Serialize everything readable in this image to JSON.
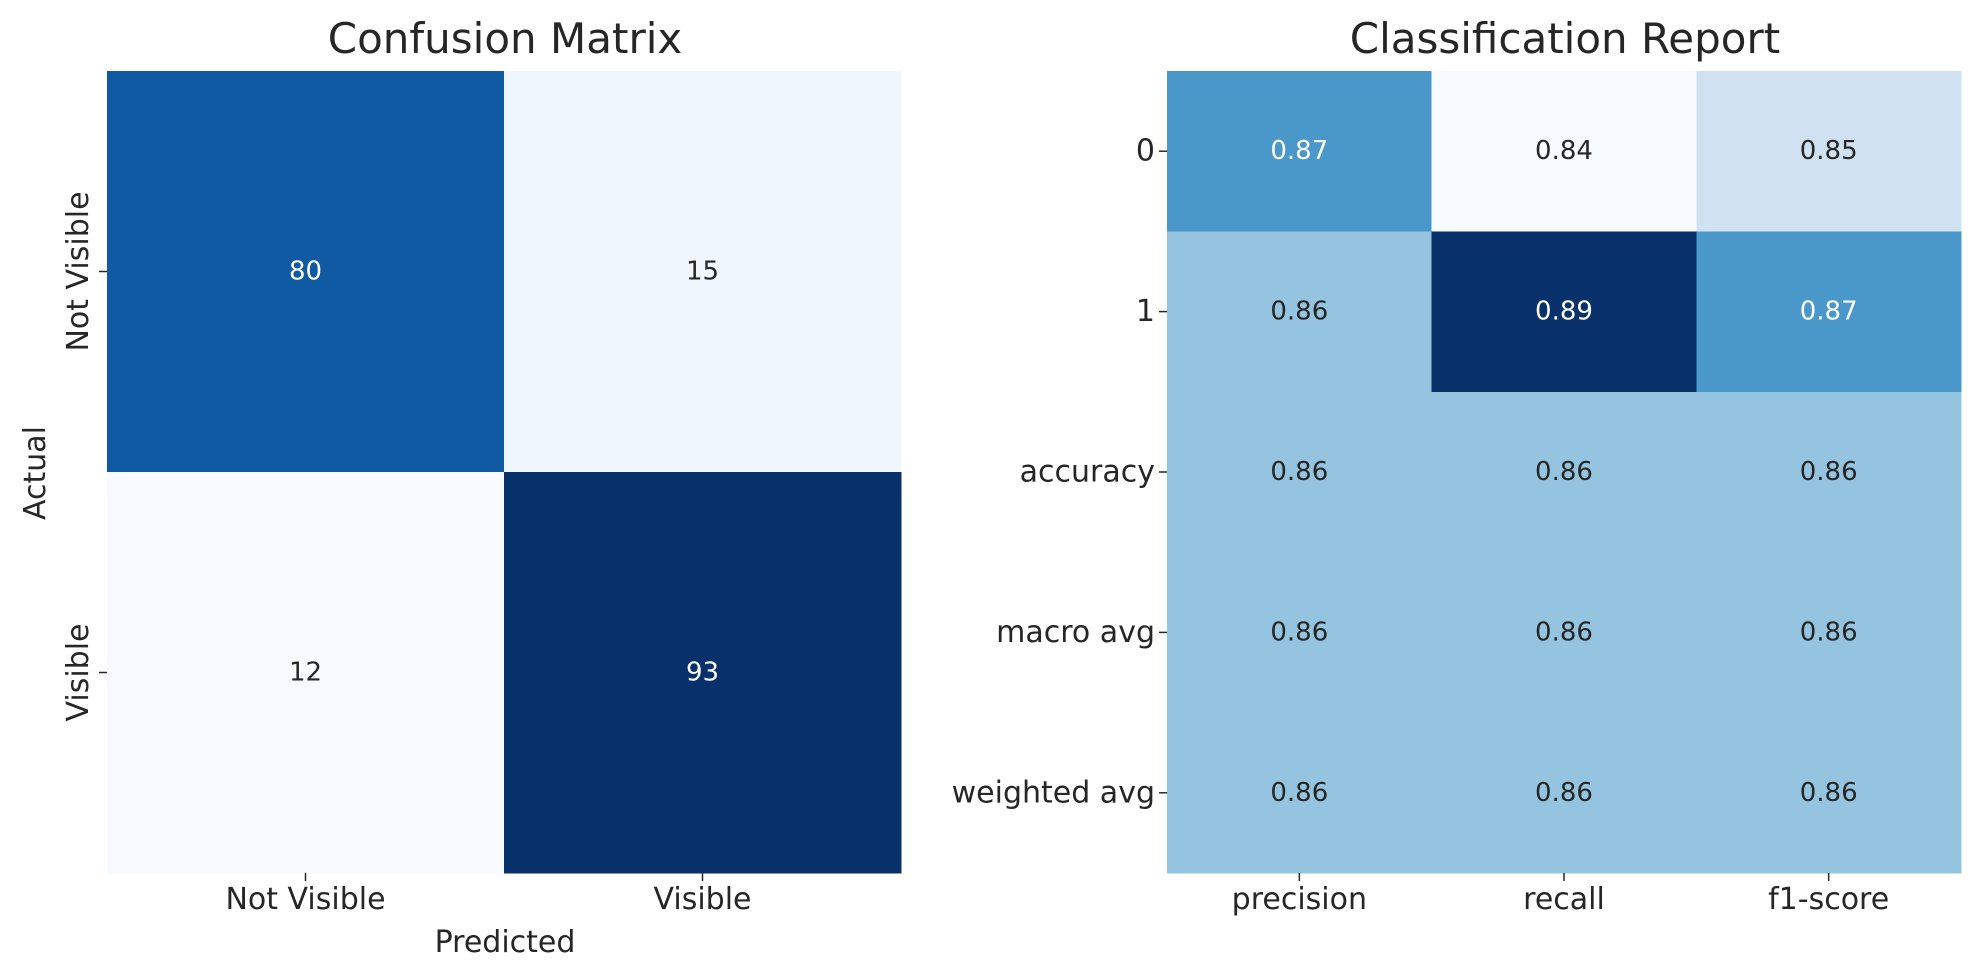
{
  "chart_data": [
    {
      "type": "heatmap",
      "title": "Confusion Matrix",
      "xlabel": "Predicted",
      "ylabel": "Actual",
      "x_categories": [
        "Not Visible",
        "Visible"
      ],
      "y_categories": [
        "Not Visible",
        "Visible"
      ],
      "values": [
        [
          80,
          15
        ],
        [
          12,
          93
        ]
      ],
      "colormap": "Blues",
      "colorbar": false
    },
    {
      "type": "heatmap",
      "title": "Classification Report",
      "xlabel": "",
      "ylabel": "",
      "x_categories": [
        "precision",
        "recall",
        "f1-score"
      ],
      "y_categories": [
        "0",
        "1",
        "accuracy",
        "macro avg",
        "weighted avg"
      ],
      "values": [
        [
          0.87,
          0.84,
          0.85
        ],
        [
          0.86,
          0.89,
          0.87
        ],
        [
          0.86,
          0.86,
          0.86
        ],
        [
          0.86,
          0.86,
          0.86
        ],
        [
          0.86,
          0.86,
          0.86
        ]
      ],
      "colormap": "Blues",
      "colorbar": false
    }
  ]
}
